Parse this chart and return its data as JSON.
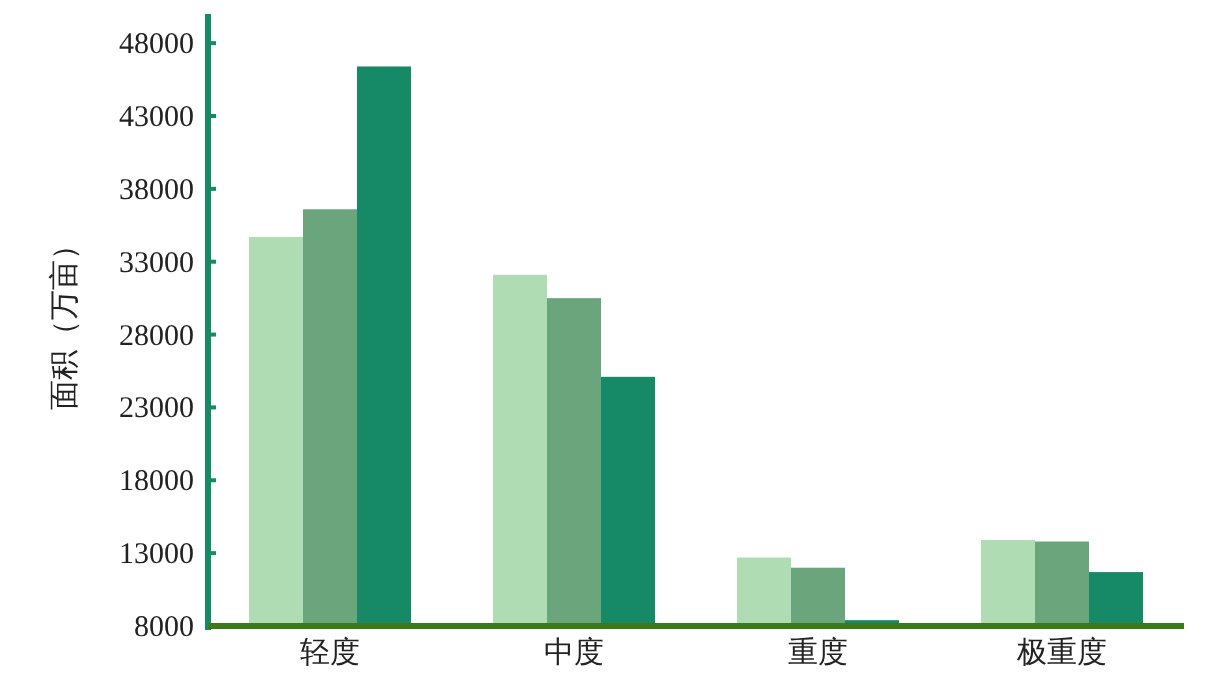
{
  "chart_data": {
    "type": "bar",
    "ylabel": "面积（万亩）",
    "categories": [
      "轻度",
      "中度",
      "重度",
      "极重度"
    ],
    "series": [
      {
        "color": "#b0dcb4",
        "values": [
          34700,
          32100,
          12700,
          13900
        ]
      },
      {
        "color": "#6aa57c",
        "values": [
          36600,
          30500,
          12000,
          13800
        ]
      },
      {
        "color": "#168966",
        "values": [
          46400,
          25100,
          8400,
          11700
        ]
      }
    ],
    "ylim": [
      8000,
      50000
    ],
    "yticks": [
      8000,
      13000,
      18000,
      23000,
      28000,
      33000,
      38000,
      43000,
      48000
    ],
    "grid": false
  }
}
